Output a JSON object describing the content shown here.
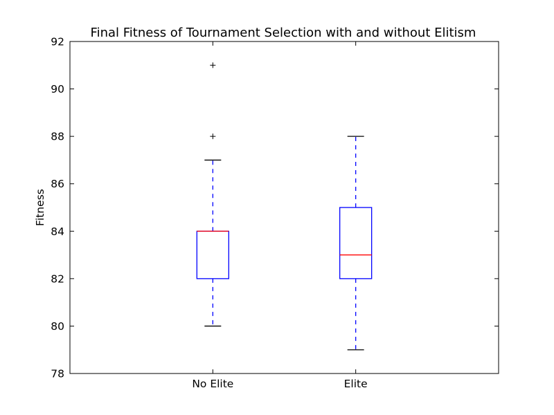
{
  "chart_data": {
    "type": "box",
    "title": "Final Fitness of Tournament Selection with and without Elitism",
    "xlabel": "",
    "ylabel": "Fitness",
    "ylim": [
      78,
      92
    ],
    "yticks": [
      "78",
      "80",
      "82",
      "84",
      "86",
      "88",
      "90",
      "92"
    ],
    "grid": false,
    "categories": [
      "No Elite",
      "Elite"
    ],
    "boxes": [
      {
        "name": "No Elite",
        "whisker_low": 80,
        "q1": 82,
        "median": 84,
        "q3": 84,
        "whisker_high": 87,
        "outliers": [
          88,
          91
        ]
      },
      {
        "name": "Elite",
        "whisker_low": 79,
        "q1": 82,
        "median": 83,
        "q3": 85,
        "whisker_high": 88,
        "outliers": []
      }
    ],
    "colors": {
      "box": "#0000ff",
      "median": "#ff0000",
      "whisker": "#0000ff",
      "cap": "#000000",
      "outlier": "#000000",
      "axes": "#000000"
    }
  }
}
